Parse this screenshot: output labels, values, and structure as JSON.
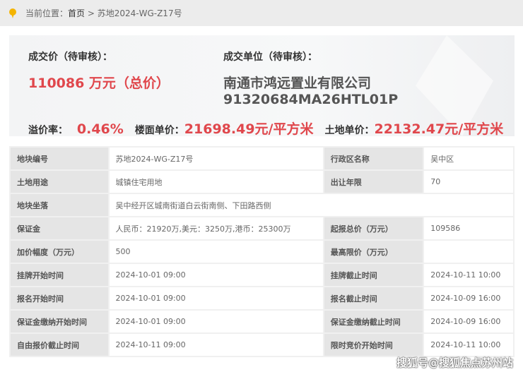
{
  "breadcrumb": {
    "prefix": "当前位置：",
    "home": "首页",
    "sep": " > ",
    "current": "苏地2024-WG-Z17号"
  },
  "summary": {
    "price_label": "成交价（待审核）：",
    "price_value": "110086 万元（总价）",
    "winner_label": "成交单位（待审核）：",
    "winner_name": "南通市鸿远置业有限公司",
    "winner_code": "91320684MA26HTL01P",
    "premium_label": "溢价率：",
    "premium_value": "0.46%",
    "floor_price_label": "楼面单价：",
    "floor_price_value": "21698.49元/平方米",
    "land_price_label": "土地单价：",
    "land_price_value": "22132.47元/平方米"
  },
  "table": {
    "rows": [
      [
        "地块编号",
        "苏地2024-WG-Z17号",
        "行政区名称",
        "吴中区"
      ],
      [
        "土地用途",
        "城镇住宅用地",
        "出让年限",
        "70"
      ],
      [
        "地块坐落",
        "吴中经开区城南街道白云街南侧、下田路西侧"
      ],
      [
        "保证金",
        "人民币：21920万,美元：3250万,港币：25300万",
        "起报总价（万元）",
        "109586"
      ],
      [
        "加价幅度（万元）",
        "500",
        "最高限价（万元）",
        ""
      ],
      [
        "挂牌开始时间",
        "2024-10-01 09:00",
        "挂牌截止时间",
        "2024-10-11 10:00"
      ],
      [
        "报名开始时间",
        "2024-10-01 09:00",
        "报名截止时间",
        "2024-10-09 16:00"
      ],
      [
        "保证金缴纳开始时间",
        "2024-10-01 09:00",
        "保证金缴纳截止时间",
        "2024-10-09 16:00"
      ],
      [
        "自由报价截止时间",
        "2024-10-11 09:00",
        "限时竞价开始时间",
        "2024-10-11 10:00"
      ]
    ]
  },
  "watermark": "搜狐号@搜狐焦点苏州站",
  "colors": {
    "accent_red": "#e0474c",
    "pin": "#f4b400"
  }
}
